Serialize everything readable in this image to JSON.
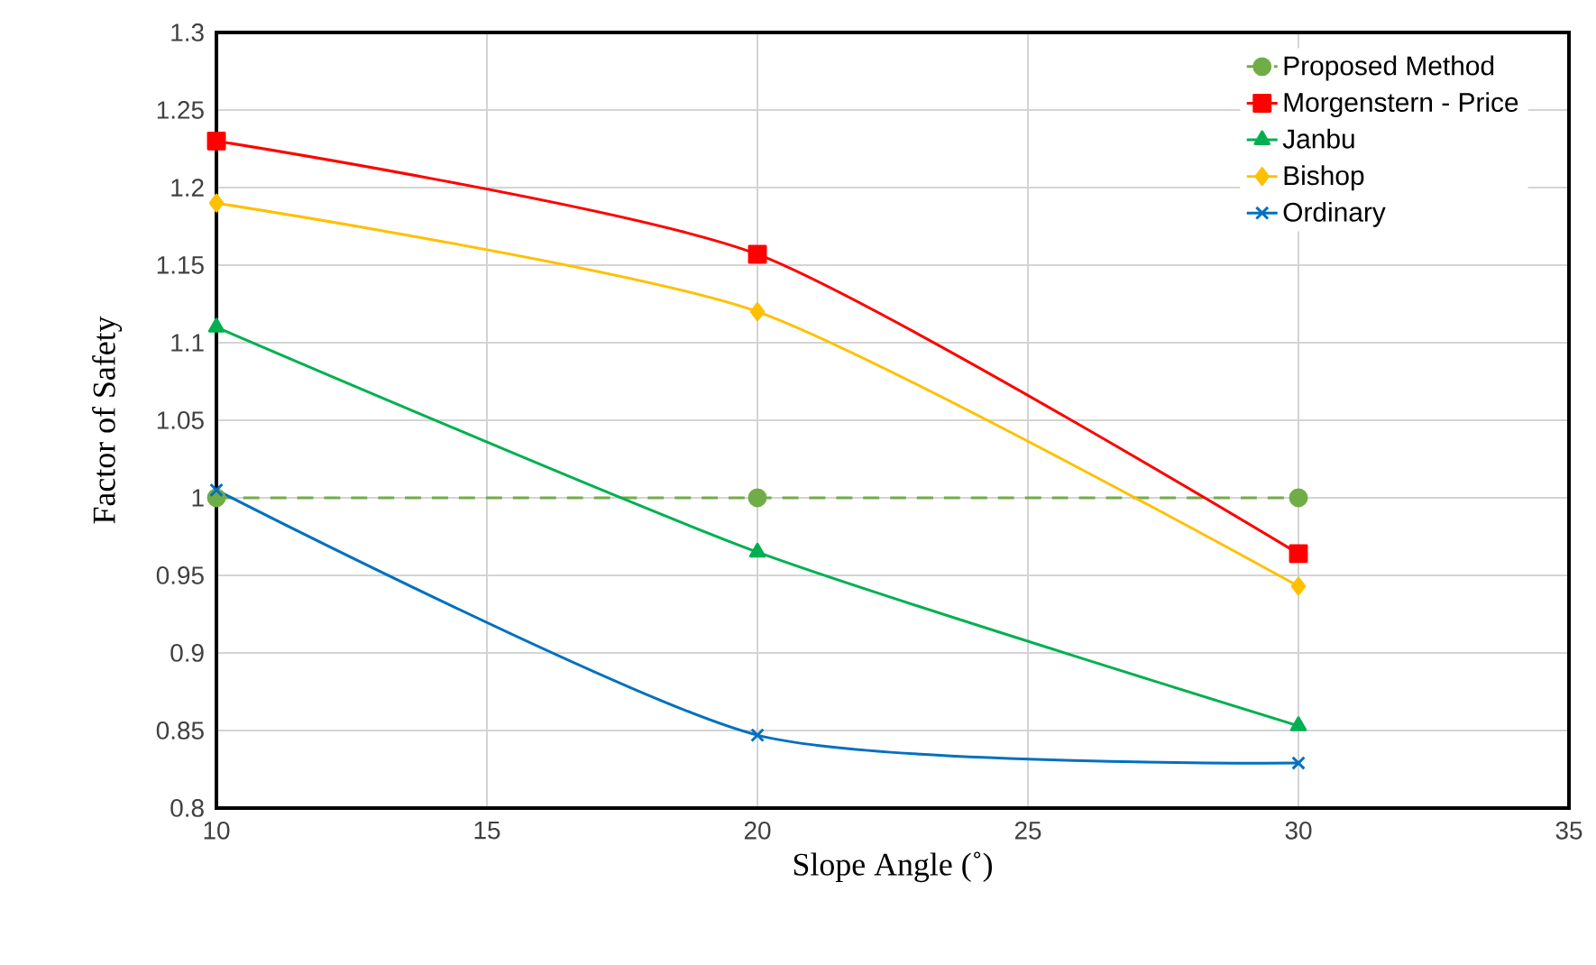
{
  "chart_data": {
    "type": "line",
    "xlabel": "Slope Angle (˚)",
    "ylabel": "Factor of Safety",
    "xlim": [
      10,
      35
    ],
    "xticks": [
      10,
      15,
      20,
      25,
      30,
      35
    ],
    "ylim": [
      0.8,
      1.3
    ],
    "yticks": [
      0.8,
      0.85,
      0.9,
      0.95,
      1,
      1.05,
      1.1,
      1.15,
      1.2,
      1.25,
      1.3
    ],
    "grid": true,
    "legend": "top right",
    "series": [
      {
        "name": "Proposed Method",
        "color": "#70ad47",
        "marker": "circle",
        "line_style": "dashed",
        "x": [
          10,
          20,
          30
        ],
        "values": [
          1,
          1,
          1
        ]
      },
      {
        "name": "Morgenstern - Price",
        "color": "#ff0000",
        "marker": "square",
        "line_style": "solid",
        "x": [
          10,
          20,
          30
        ],
        "values": [
          1.23,
          1.157,
          0.964
        ]
      },
      {
        "name": "Janbu",
        "color": "#00b050",
        "marker": "triangle",
        "line_style": "solid",
        "x": [
          10,
          20,
          30
        ],
        "values": [
          1.11,
          0.965,
          0.853
        ]
      },
      {
        "name": "Bishop",
        "color": "#ffc000",
        "marker": "diamond",
        "line_style": "solid",
        "x": [
          10,
          20,
          30
        ],
        "values": [
          1.19,
          1.12,
          0.943
        ]
      },
      {
        "name": "Ordinary",
        "color": "#0070c0",
        "marker": "cross",
        "line_style": "solid",
        "x": [
          10,
          20,
          30
        ],
        "values": [
          1.005,
          0.847,
          0.829
        ]
      }
    ]
  }
}
